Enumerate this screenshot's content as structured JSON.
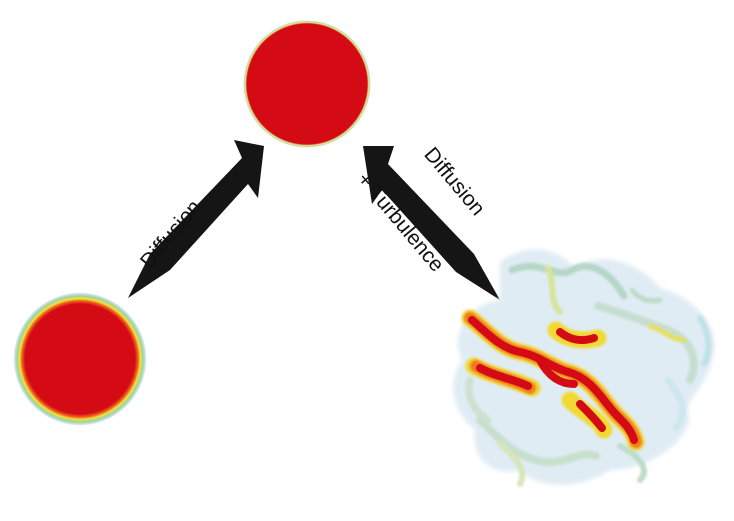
{
  "labels": {
    "left_arrow": "Diffusion",
    "right_arrow_line1": "Diffusion",
    "right_arrow_line2": "+ Turbulence"
  },
  "colors": {
    "core": "#d40a14",
    "rim_yellow": "#f2e23c",
    "rim_green": "#9fd39a",
    "halo_blue": "#cfe6ee",
    "arrow": "#151515"
  },
  "icons": {
    "top_blob": "red-circle",
    "left_blob": "diffused-red-circle",
    "right_blob": "turbulent-mixed-patch",
    "arrows": "jagged-arrow"
  }
}
